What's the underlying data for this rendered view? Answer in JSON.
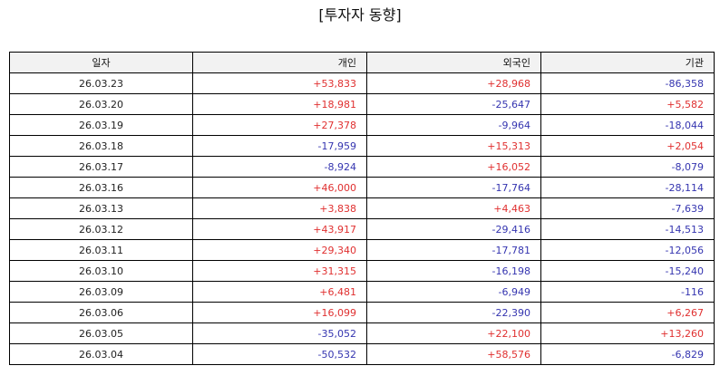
{
  "title": "[투자자 동향]",
  "colors": {
    "positive": "#e03030",
    "negative": "#3535b0",
    "header_bg": "#f2f2f2",
    "border": "#000000"
  },
  "table": {
    "headers": [
      "일자",
      "개인",
      "외국인",
      "기관"
    ],
    "rows": [
      [
        "26.03.23",
        "+53,833",
        "+28,968",
        "-86,358"
      ],
      [
        "26.03.20",
        "+18,981",
        "-25,647",
        "+5,582"
      ],
      [
        "26.03.19",
        "+27,378",
        "-9,964",
        "-18,044"
      ],
      [
        "26.03.18",
        "-17,959",
        "+15,313",
        "+2,054"
      ],
      [
        "26.03.17",
        "-8,924",
        "+16,052",
        "-8,079"
      ],
      [
        "26.03.16",
        "+46,000",
        "-17,764",
        "-28,114"
      ],
      [
        "26.03.13",
        "+3,838",
        "+4,463",
        "-7,639"
      ],
      [
        "26.03.12",
        "+43,917",
        "-29,416",
        "-14,513"
      ],
      [
        "26.03.11",
        "+29,340",
        "-17,781",
        "-12,056"
      ],
      [
        "26.03.10",
        "+31,315",
        "-16,198",
        "-15,240"
      ],
      [
        "26.03.09",
        "+6,481",
        "-6,949",
        "-116"
      ],
      [
        "26.03.06",
        "+16,099",
        "-22,390",
        "+6,267"
      ],
      [
        "26.03.05",
        "-35,052",
        "+22,100",
        "+13,260"
      ],
      [
        "26.03.04",
        "-50,532",
        "+58,576",
        "-6,829"
      ]
    ]
  }
}
